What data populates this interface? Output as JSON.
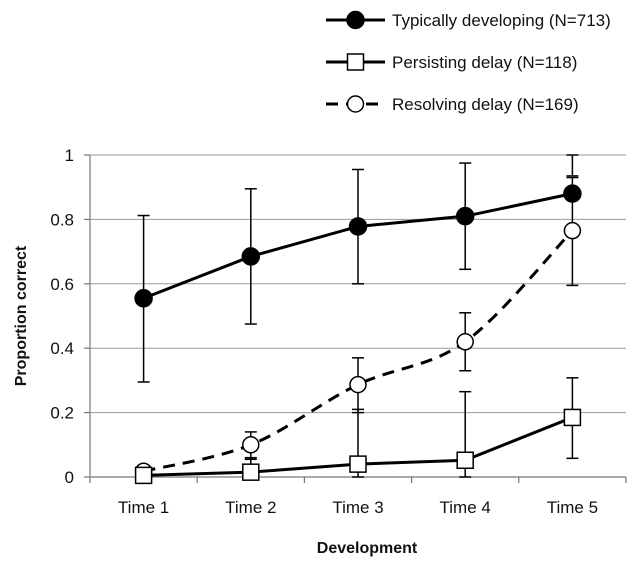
{
  "chart_data": {
    "type": "line",
    "title": "",
    "xlabel": "Development",
    "ylabel": "Proportion correct",
    "categories": [
      "Time 1",
      "Time 2",
      "Time 3",
      "Time 4",
      "Time 5"
    ],
    "ylim": [
      0,
      1
    ],
    "yticks": [
      "0",
      "0.2",
      "0.4",
      "0.6",
      "0.8",
      "1"
    ],
    "grid": true,
    "legend_position": "top-right",
    "series": [
      {
        "name": "Typically developing (N=713)",
        "values": [
          0.555,
          0.685,
          0.778,
          0.81,
          0.88
        ],
        "error_upper": [
          0.812,
          0.895,
          0.955,
          0.975,
          1.0
        ],
        "error_lower": [
          0.295,
          0.475,
          0.6,
          0.645,
          0.935
        ],
        "marker": "filled-circle",
        "line": "solid",
        "color": "#000000"
      },
      {
        "name": "Persisting delay (N=118)",
        "values": [
          0.005,
          0.015,
          0.04,
          0.052,
          0.185
        ],
        "error_upper": [
          0.025,
          0.06,
          0.21,
          0.265,
          0.308
        ],
        "error_lower": [
          0.0,
          0.0,
          0.0,
          0.0,
          0.058
        ],
        "marker": "open-square",
        "line": "solid",
        "color": "#000000"
      },
      {
        "name": "Resolving delay (N=169)",
        "values": [
          0.018,
          0.1,
          0.287,
          0.42,
          0.765
        ],
        "error_upper": [
          0.03,
          0.14,
          0.37,
          0.51,
          0.93
        ],
        "error_lower": [
          0.005,
          0.055,
          0.2,
          0.33,
          0.595
        ],
        "marker": "open-circle",
        "line": "dashed",
        "color": "#000000"
      }
    ]
  }
}
